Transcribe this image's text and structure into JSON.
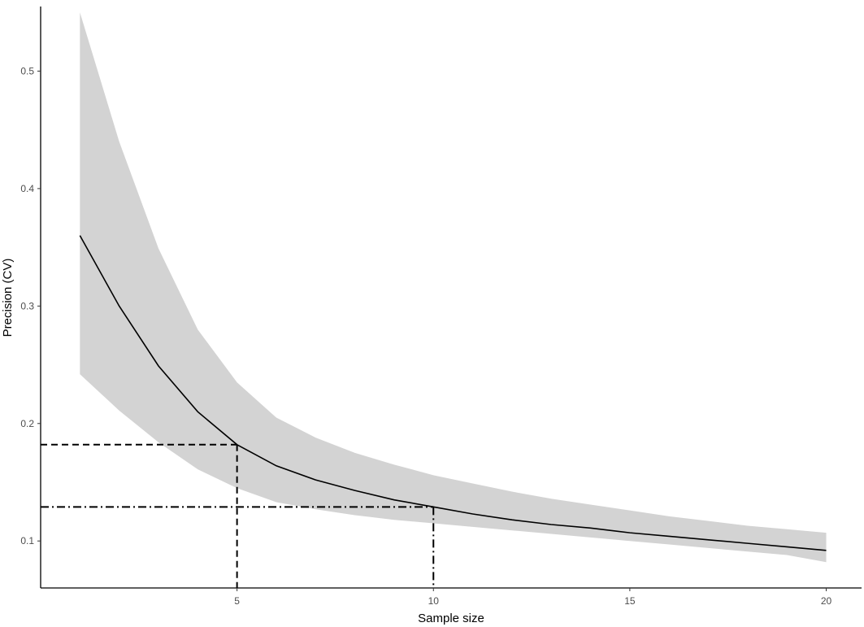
{
  "chart_data": {
    "type": "line",
    "title": "",
    "xlabel": "Sample size",
    "ylabel": "Precision (CV)",
    "xlim": [
      0,
      20.9
    ],
    "ylim": [
      0.06,
      0.555
    ],
    "x_ticks": [
      5,
      10,
      15,
      20
    ],
    "y_ticks": [
      0.1,
      0.2,
      0.3,
      0.4,
      0.5
    ],
    "x_tick_labels": [
      "5",
      "10",
      "15",
      "20"
    ],
    "y_tick_labels": [
      "0.1",
      "0.2",
      "0.3",
      "0.4",
      "0.5"
    ],
    "grid": false,
    "legend": "none",
    "series": [
      {
        "x": [
          1,
          2,
          3,
          4,
          5,
          6,
          7,
          8,
          9,
          10,
          11,
          12,
          13,
          14,
          15,
          16,
          17,
          18,
          19,
          20
        ],
        "values": [
          0.36,
          0.3,
          0.249,
          0.21,
          0.182,
          0.164,
          0.152,
          0.143,
          0.135,
          0.129,
          0.123,
          0.118,
          0.114,
          0.111,
          0.107,
          0.104,
          0.101,
          0.098,
          0.095,
          0.092
        ],
        "lower": [
          0.242,
          0.211,
          0.184,
          0.161,
          0.145,
          0.133,
          0.127,
          0.122,
          0.118,
          0.115,
          0.112,
          0.109,
          0.106,
          0.103,
          0.1,
          0.097,
          0.094,
          0.091,
          0.088,
          0.082
        ],
        "upper": [
          0.55,
          0.44,
          0.349,
          0.28,
          0.235,
          0.205,
          0.188,
          0.175,
          0.165,
          0.156,
          0.149,
          0.142,
          0.136,
          0.131,
          0.126,
          0.121,
          0.117,
          0.113,
          0.11,
          0.107
        ]
      }
    ],
    "reference_lines": [
      {
        "style": "dashed",
        "x": 5,
        "y": 0.182
      },
      {
        "style": "dashdot",
        "x": 10,
        "y": 0.129
      }
    ],
    "colors": {
      "line": "#000000",
      "band": "#d3d3d3",
      "axis": "#000000"
    }
  }
}
